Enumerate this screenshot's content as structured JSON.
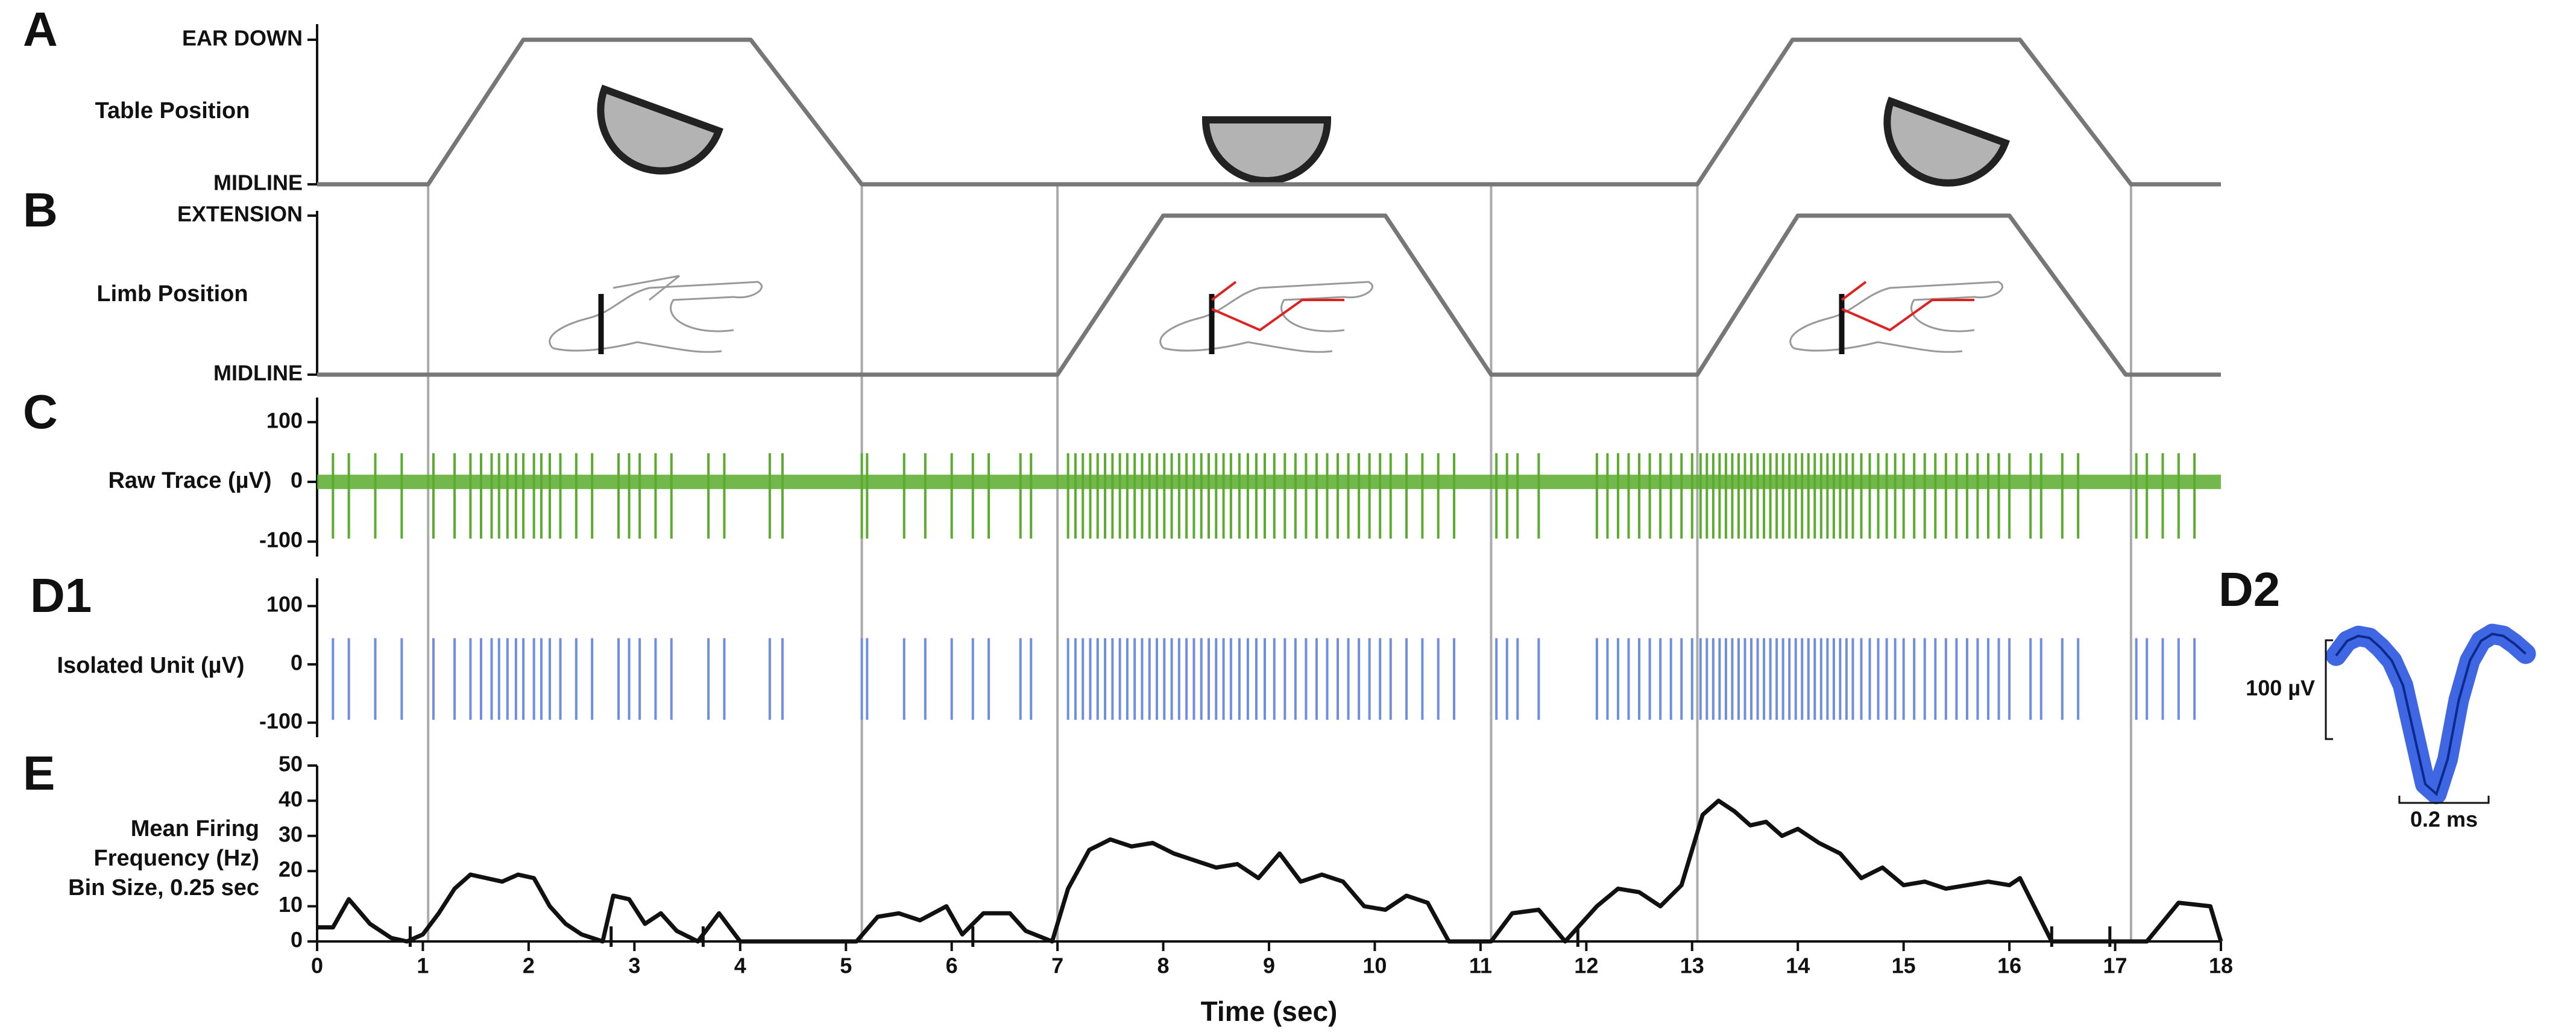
{
  "panel_labels": [
    "A",
    "B",
    "C",
    "D1",
    "E",
    "D2"
  ],
  "transitions": [
    1.05,
    5.15,
    7.0,
    11.1,
    13.05,
    17.15
  ],
  "chart_data": [
    {
      "type": "line",
      "ylabel": [
        "Table Position"
      ],
      "color": "#777777",
      "ylim": [
        0,
        1
      ],
      "yticks": [
        {
          "value": 1,
          "label": "EAR DOWN"
        },
        {
          "value": 0,
          "label": "MIDLINE"
        }
      ],
      "x": [
        0,
        1.05,
        1.95,
        4.1,
        5.15,
        13.05,
        13.95,
        16.1,
        17.15,
        18
      ],
      "values": [
        0,
        0,
        1,
        1,
        0,
        0,
        1,
        1,
        0,
        0
      ]
    },
    {
      "type": "line",
      "ylabel": [
        "Limb Position"
      ],
      "color": "#777777",
      "ylim": [
        0,
        1
      ],
      "yticks": [
        {
          "value": 1,
          "label": "EXTENSION"
        },
        {
          "value": 0,
          "label": "MIDLINE"
        }
      ],
      "x": [
        0,
        7.0,
        8.0,
        10.1,
        11.1,
        13.05,
        14.0,
        16.0,
        17.1,
        18
      ],
      "values": [
        0,
        0,
        1,
        1,
        0,
        0,
        1,
        1,
        0,
        0
      ]
    },
    {
      "type": "spikes",
      "ylabel": [
        "Raw Trace (µV)"
      ],
      "color": "#5aab2e",
      "ylim": [
        -125,
        125
      ],
      "yticks": [
        -100,
        0,
        100
      ],
      "noise": [
        -12,
        12
      ],
      "spike_range": [
        -95,
        48
      ],
      "x": [
        0.15,
        0.3,
        0.55,
        0.8,
        1.1,
        1.3,
        1.45,
        1.55,
        1.65,
        1.72,
        1.8,
        1.88,
        1.95,
        2.05,
        2.12,
        2.2,
        2.3,
        2.45,
        2.6,
        2.85,
        2.95,
        3.05,
        3.2,
        3.35,
        3.7,
        3.85,
        4.28,
        4.4,
        5.15,
        5.2,
        5.55,
        5.75,
        6.0,
        6.2,
        6.35,
        6.65,
        6.75,
        7.1,
        7.17,
        7.24,
        7.31,
        7.38,
        7.45,
        7.52,
        7.59,
        7.66,
        7.73,
        7.8,
        7.87,
        7.94,
        8.01,
        8.08,
        8.15,
        8.22,
        8.29,
        8.36,
        8.43,
        8.5,
        8.57,
        8.64,
        8.72,
        8.8,
        8.88,
        8.96,
        9.05,
        9.15,
        9.25,
        9.35,
        9.45,
        9.55,
        9.65,
        9.75,
        9.85,
        9.95,
        10.05,
        10.15,
        10.3,
        10.45,
        10.6,
        10.75,
        11.15,
        11.25,
        11.35,
        11.55,
        12.1,
        12.2,
        12.3,
        12.4,
        12.5,
        12.6,
        12.7,
        12.8,
        12.9,
        13.0,
        13.08,
        13.14,
        13.2,
        13.26,
        13.32,
        13.38,
        13.44,
        13.5,
        13.56,
        13.62,
        13.68,
        13.74,
        13.8,
        13.86,
        13.92,
        13.98,
        14.04,
        14.1,
        14.16,
        14.22,
        14.28,
        14.34,
        14.4,
        14.46,
        14.52,
        14.6,
        14.68,
        14.76,
        14.84,
        14.92,
        15.0,
        15.1,
        15.2,
        15.3,
        15.4,
        15.5,
        15.6,
        15.7,
        15.8,
        15.9,
        16.0,
        16.2,
        16.3,
        16.5,
        16.65,
        17.2,
        17.3,
        17.45,
        17.6,
        17.75
      ]
    },
    {
      "type": "spikes",
      "ylabel": [
        "Isolated Unit (µV)"
      ],
      "color": "#6f8ee0",
      "ylim": [
        -125,
        125
      ],
      "yticks": [
        -100,
        0,
        100
      ],
      "spike_range": [
        -95,
        45
      ],
      "x": [
        0.15,
        0.3,
        0.55,
        0.8,
        1.1,
        1.3,
        1.45,
        1.55,
        1.65,
        1.72,
        1.8,
        1.88,
        1.95,
        2.05,
        2.12,
        2.2,
        2.3,
        2.45,
        2.6,
        2.85,
        2.95,
        3.05,
        3.2,
        3.35,
        3.7,
        3.85,
        4.28,
        4.4,
        5.15,
        5.2,
        5.55,
        5.75,
        6.0,
        6.2,
        6.35,
        6.65,
        6.75,
        7.1,
        7.17,
        7.24,
        7.31,
        7.38,
        7.45,
        7.52,
        7.59,
        7.66,
        7.73,
        7.8,
        7.87,
        7.94,
        8.01,
        8.08,
        8.15,
        8.22,
        8.29,
        8.36,
        8.43,
        8.5,
        8.57,
        8.64,
        8.72,
        8.8,
        8.88,
        8.96,
        9.05,
        9.15,
        9.25,
        9.35,
        9.45,
        9.55,
        9.65,
        9.75,
        9.85,
        9.95,
        10.05,
        10.15,
        10.3,
        10.45,
        10.6,
        10.75,
        11.15,
        11.25,
        11.35,
        11.55,
        12.1,
        12.2,
        12.3,
        12.4,
        12.5,
        12.6,
        12.7,
        12.8,
        12.9,
        13.0,
        13.08,
        13.14,
        13.2,
        13.26,
        13.32,
        13.38,
        13.44,
        13.5,
        13.56,
        13.62,
        13.68,
        13.74,
        13.8,
        13.86,
        13.92,
        13.98,
        14.04,
        14.1,
        14.16,
        14.22,
        14.28,
        14.34,
        14.4,
        14.46,
        14.52,
        14.6,
        14.68,
        14.76,
        14.84,
        14.92,
        15.0,
        15.1,
        15.2,
        15.3,
        15.4,
        15.5,
        15.6,
        15.7,
        15.8,
        15.9,
        16.0,
        16.2,
        16.3,
        16.5,
        16.65,
        17.2,
        17.3,
        17.45,
        17.6,
        17.75
      ]
    },
    {
      "type": "line",
      "ylabel": [
        "Mean Firing",
        "Frequency (Hz)",
        "Bin Size, 0.25 sec"
      ],
      "color": "#111111",
      "xlabel": "Time (sec)",
      "xlim": [
        0,
        18
      ],
      "xticks": [
        0,
        1,
        2,
        3,
        4,
        5,
        6,
        7,
        8,
        9,
        10,
        11,
        12,
        13,
        14,
        15,
        16,
        17,
        18
      ],
      "ylim": [
        0,
        50
      ],
      "yticks": [
        0,
        10,
        20,
        30,
        40,
        50
      ],
      "event_marks": [
        0.88,
        2.78,
        3.65,
        6.2,
        11.92,
        16.4,
        16.95
      ],
      "x": [
        0,
        0.15,
        0.3,
        0.5,
        0.7,
        0.85,
        1.0,
        1.15,
        1.3,
        1.45,
        1.6,
        1.75,
        1.9,
        2.05,
        2.2,
        2.35,
        2.5,
        2.7,
        2.8,
        2.95,
        3.1,
        3.25,
        3.4,
        3.6,
        3.8,
        4.0,
        4.2,
        5.1,
        5.3,
        5.5,
        5.7,
        5.95,
        6.1,
        6.3,
        6.55,
        6.7,
        6.95,
        7.1,
        7.3,
        7.5,
        7.7,
        7.9,
        8.1,
        8.3,
        8.5,
        8.7,
        8.9,
        9.1,
        9.3,
        9.5,
        9.7,
        9.9,
        10.1,
        10.3,
        10.5,
        10.7,
        11.0,
        11.1,
        11.3,
        11.55,
        11.8,
        12.1,
        12.3,
        12.5,
        12.7,
        12.9,
        13.1,
        13.25,
        13.4,
        13.55,
        13.7,
        13.85,
        14.0,
        14.2,
        14.4,
        14.6,
        14.8,
        15.0,
        15.2,
        15.4,
        15.6,
        15.8,
        16.0,
        16.1,
        16.4,
        16.9,
        17.1,
        17.3,
        17.6,
        17.9,
        18
      ],
      "values": [
        4,
        4,
        12,
        5,
        1,
        0,
        2,
        8,
        15,
        19,
        18,
        17,
        19,
        18,
        10,
        5,
        2,
        0,
        13,
        12,
        5,
        8,
        3,
        0,
        8,
        0,
        0,
        0,
        7,
        8,
        6,
        10,
        2,
        8,
        8,
        3,
        0,
        15,
        26,
        29,
        27,
        28,
        25,
        23,
        21,
        22,
        18,
        25,
        17,
        19,
        17,
        10,
        9,
        13,
        11,
        0,
        0,
        0,
        8,
        9,
        0,
        10,
        15,
        14,
        10,
        16,
        36,
        40,
        37,
        33,
        34,
        30,
        32,
        28,
        25,
        18,
        21,
        16,
        17,
        15,
        16,
        17,
        16,
        18,
        0,
        0,
        0,
        0,
        11,
        10,
        0
      ]
    },
    {
      "type": "waveform",
      "color": "#2a55e0",
      "scalebar_y": {
        "value": 100,
        "label": "100 µV"
      },
      "scalebar_x": {
        "value": 0.2,
        "label": "0.2 ms"
      },
      "x": [
        0,
        0.025,
        0.05,
        0.075,
        0.1,
        0.125,
        0.15,
        0.175,
        0.2,
        0.225,
        0.25,
        0.275,
        0.3,
        0.325,
        0.35,
        0.375,
        0.4,
        0.425
      ],
      "values": [
        10,
        25,
        30,
        28,
        18,
        5,
        -20,
        -70,
        -120,
        -130,
        -95,
        -35,
        5,
        25,
        32,
        30,
        22,
        12
      ]
    }
  ]
}
